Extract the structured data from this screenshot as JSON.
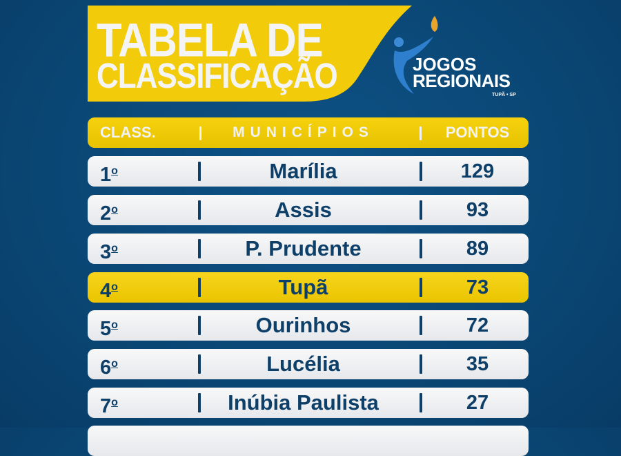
{
  "title": {
    "line1": "TABELA DE",
    "line2": "CLASSIFICAÇÃO"
  },
  "logo": {
    "line1": "JOGOS",
    "line2": "REGIONAIS",
    "line3": "TUPÃ • SP"
  },
  "colors": {
    "background": "#0a4674",
    "accent": "#f2cc0a",
    "text": "#0d3f68"
  },
  "header": {
    "position": "CLASS.",
    "municipality": "MUNICÍPIOS",
    "points": "PONTOS"
  },
  "rows": [
    {
      "position": "1",
      "ordinal": "o",
      "municipality": "Marília",
      "points": "129",
      "highlight": false
    },
    {
      "position": "2",
      "ordinal": "o",
      "municipality": "Assis",
      "points": "93",
      "highlight": false
    },
    {
      "position": "3",
      "ordinal": "o",
      "municipality": "P. Prudente",
      "points": "89",
      "highlight": false
    },
    {
      "position": "4",
      "ordinal": "o",
      "municipality": "Tupã",
      "points": "73",
      "highlight": true
    },
    {
      "position": "5",
      "ordinal": "o",
      "municipality": "Ourinhos",
      "points": "72",
      "highlight": false
    },
    {
      "position": "6",
      "ordinal": "o",
      "municipality": "Lucélia",
      "points": "35",
      "highlight": false
    },
    {
      "position": "7",
      "ordinal": "o",
      "municipality": "Inúbia Paulista",
      "points": "27",
      "highlight": false
    }
  ]
}
